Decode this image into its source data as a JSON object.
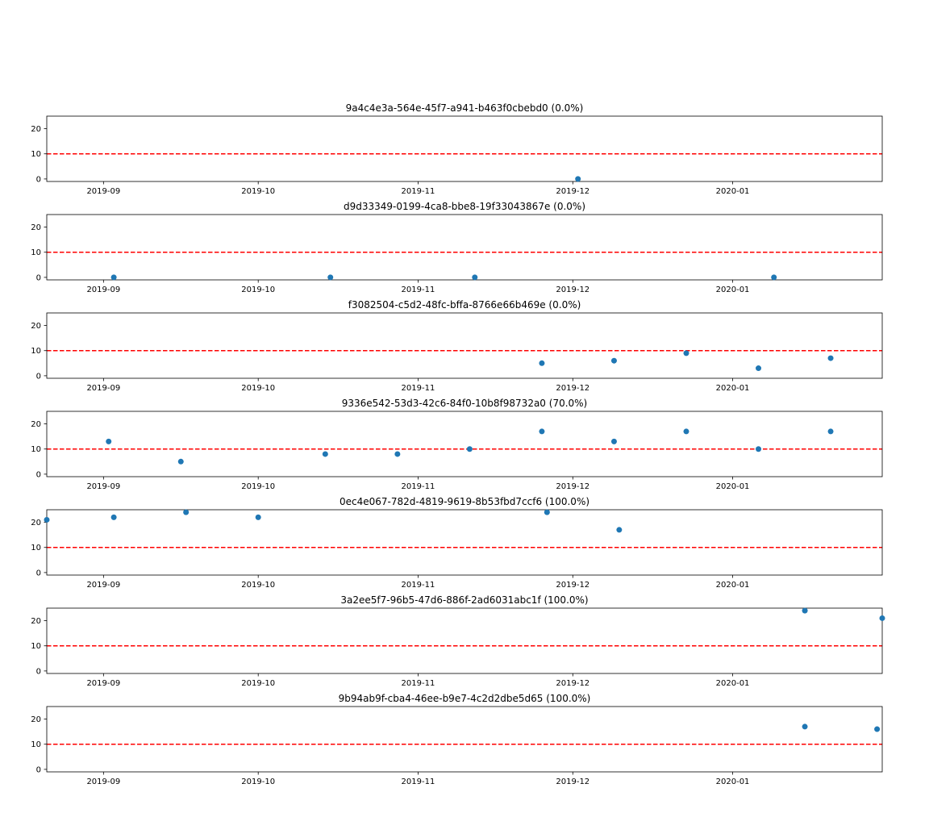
{
  "colors": {
    "points": "#1f77b4",
    "threshold": "#ff0000",
    "axes": "#000000"
  },
  "chart_data": [
    {
      "type": "scatter",
      "title": "9a4c4e3a-564e-45f7-a941-b463f0cbebd0 (0.0%)",
      "xlim": [
        "2019-08-21",
        "2020-01-30"
      ],
      "ylim": [
        -1,
        25
      ],
      "xticks": [
        "2019-09",
        "2019-10",
        "2019-11",
        "2019-12",
        "2020-01"
      ],
      "yticks": [
        "0",
        "10",
        "20"
      ],
      "threshold": 10,
      "points": [
        {
          "x": "2019-12-02",
          "y": 0
        }
      ]
    },
    {
      "type": "scatter",
      "title": "d9d33349-0199-4ca8-bbe8-19f33043867e (0.0%)",
      "xlim": [
        "2019-08-21",
        "2020-01-30"
      ],
      "ylim": [
        -1,
        25
      ],
      "xticks": [
        "2019-09",
        "2019-10",
        "2019-11",
        "2019-12",
        "2020-01"
      ],
      "yticks": [
        "0",
        "10",
        "20"
      ],
      "threshold": 10,
      "points": [
        {
          "x": "2019-09-03",
          "y": 0
        },
        {
          "x": "2019-10-15",
          "y": 0
        },
        {
          "x": "2019-11-12",
          "y": 0
        },
        {
          "x": "2020-01-09",
          "y": 0
        }
      ]
    },
    {
      "type": "scatter",
      "title": "f3082504-c5d2-48fc-bffa-8766e66b469e (0.0%)",
      "xlim": [
        "2019-08-21",
        "2020-01-30"
      ],
      "ylim": [
        -1,
        25
      ],
      "xticks": [
        "2019-09",
        "2019-10",
        "2019-11",
        "2019-12",
        "2020-01"
      ],
      "yticks": [
        "0",
        "10",
        "20"
      ],
      "threshold": 10,
      "points": [
        {
          "x": "2019-11-25",
          "y": 5
        },
        {
          "x": "2019-12-09",
          "y": 6
        },
        {
          "x": "2019-12-23",
          "y": 9
        },
        {
          "x": "2020-01-06",
          "y": 3
        },
        {
          "x": "2020-01-20",
          "y": 7
        }
      ]
    },
    {
      "type": "scatter",
      "title": "9336e542-53d3-42c6-84f0-10b8f98732a0 (70.0%)",
      "xlim": [
        "2019-08-21",
        "2020-01-30"
      ],
      "ylim": [
        -1,
        25
      ],
      "xticks": [
        "2019-09",
        "2019-10",
        "2019-11",
        "2019-12",
        "2020-01"
      ],
      "yticks": [
        "0",
        "10",
        "20"
      ],
      "threshold": 10,
      "points": [
        {
          "x": "2019-09-02",
          "y": 13
        },
        {
          "x": "2019-09-16",
          "y": 5
        },
        {
          "x": "2019-10-14",
          "y": 8
        },
        {
          "x": "2019-10-28",
          "y": 8
        },
        {
          "x": "2019-11-11",
          "y": 10
        },
        {
          "x": "2019-11-25",
          "y": 17
        },
        {
          "x": "2019-12-09",
          "y": 13
        },
        {
          "x": "2019-12-23",
          "y": 17
        },
        {
          "x": "2020-01-06",
          "y": 10
        },
        {
          "x": "2020-01-20",
          "y": 17
        }
      ]
    },
    {
      "type": "scatter",
      "title": "0ec4e067-782d-4819-9619-8b53fbd7ccf6 (100.0%)",
      "xlim": [
        "2019-08-21",
        "2020-01-30"
      ],
      "ylim": [
        -1,
        25
      ],
      "xticks": [
        "2019-09",
        "2019-10",
        "2019-11",
        "2019-12",
        "2020-01"
      ],
      "yticks": [
        "0",
        "10",
        "20"
      ],
      "threshold": 10,
      "points": [
        {
          "x": "2019-08-21",
          "y": 21
        },
        {
          "x": "2019-09-03",
          "y": 22
        },
        {
          "x": "2019-09-17",
          "y": 24
        },
        {
          "x": "2019-10-01",
          "y": 22
        },
        {
          "x": "2019-11-26",
          "y": 24
        },
        {
          "x": "2019-12-10",
          "y": 17
        }
      ]
    },
    {
      "type": "scatter",
      "title": "3a2ee5f7-96b5-47d6-886f-2ad6031abc1f (100.0%)",
      "xlim": [
        "2019-08-21",
        "2020-01-30"
      ],
      "ylim": [
        -1,
        25
      ],
      "xticks": [
        "2019-09",
        "2019-10",
        "2019-11",
        "2019-12",
        "2020-01"
      ],
      "yticks": [
        "0",
        "10",
        "20"
      ],
      "threshold": 10,
      "points": [
        {
          "x": "2020-01-15",
          "y": 24
        },
        {
          "x": "2020-01-30",
          "y": 21
        }
      ]
    },
    {
      "type": "scatter",
      "title": "9b94ab9f-cba4-46ee-b9e7-4c2d2dbe5d65 (100.0%)",
      "xlim": [
        "2019-08-21",
        "2020-01-30"
      ],
      "ylim": [
        -1,
        25
      ],
      "xticks": [
        "2019-09",
        "2019-10",
        "2019-11",
        "2019-12",
        "2020-01"
      ],
      "yticks": [
        "0",
        "10",
        "20"
      ],
      "threshold": 10,
      "points": [
        {
          "x": "2020-01-15",
          "y": 17
        },
        {
          "x": "2020-01-29",
          "y": 16
        }
      ]
    }
  ]
}
